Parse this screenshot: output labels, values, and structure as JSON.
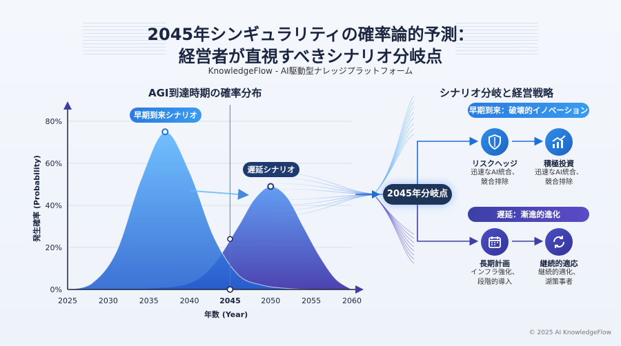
{
  "header": {
    "title_line1": "2045年シンギュラリティの確率論的予測：",
    "title_line2": "経営者が直視すべきシナリオ分岐点",
    "subtitle": "KnowledgeFlow - AI駆動型ナレッジプラットフォーム"
  },
  "left_section": {
    "title": "AGI到達時期の確率分布"
  },
  "right_section": {
    "title": "シナリオ分岐と経営戦略"
  },
  "chart_data": {
    "type": "area",
    "title": "AGI到達時期の確率分布",
    "xlabel": "年数 (Year)",
    "ylabel": "発生確率 (Probability)",
    "x_ticks": [
      "2025",
      "2030",
      "2035",
      "2040",
      "2045",
      "2050",
      "2055",
      "2060"
    ],
    "y_ticks": [
      "0%",
      "20%",
      "40%",
      "60%",
      "80%"
    ],
    "xlim": [
      2025,
      2060
    ],
    "ylim": [
      0,
      80
    ],
    "highlight_x": 2045,
    "series": [
      {
        "name": "早期到来シナリオ",
        "peak_x": 2037,
        "peak_y": 75,
        "color": "#2f8fe8",
        "x": [
          2025,
          2028,
          2031,
          2034,
          2037,
          2040,
          2043,
          2046,
          2049,
          2052,
          2055,
          2058,
          2060
        ],
        "y": [
          0,
          3,
          18,
          52,
          75,
          56,
          25,
          7,
          2,
          0.5,
          0,
          0,
          0
        ]
      },
      {
        "name": "遅延シナリオ",
        "peak_x": 2050,
        "peak_y": 49,
        "color": "#4a4fc0",
        "x": [
          2025,
          2030,
          2035,
          2040,
          2043,
          2046,
          2048,
          2050,
          2052,
          2054,
          2056,
          2058,
          2060
        ],
        "y": [
          0,
          0,
          0.5,
          3,
          12,
          30,
          43,
          49,
          44,
          30,
          16,
          5,
          0
        ]
      }
    ]
  },
  "branch": {
    "hub_label": "2045年分岐点",
    "early": {
      "header": "早期到来：破壊的イノベーション",
      "items": [
        {
          "title": "リスクヘッジ",
          "desc1": "迅速なAI統合、",
          "desc2": "競合排除",
          "icon": "shield-icon"
        },
        {
          "title": "積極投資",
          "desc1": "迅速なAI統合、",
          "desc2": "競合排除",
          "icon": "growth-chart-icon"
        }
      ]
    },
    "delay": {
      "header": "遅延：漸進的進化",
      "items": [
        {
          "title": "長期計画",
          "desc1": "インフラ強化、",
          "desc2": "段階的導入",
          "icon": "calendar-icon"
        },
        {
          "title": "継続的適応",
          "desc1": "継続的適化、",
          "desc2": "湖策事者",
          "icon": "refresh-icon"
        }
      ]
    }
  },
  "footer": {
    "copyright": "© 2025 AI KnowledgeFlow"
  }
}
